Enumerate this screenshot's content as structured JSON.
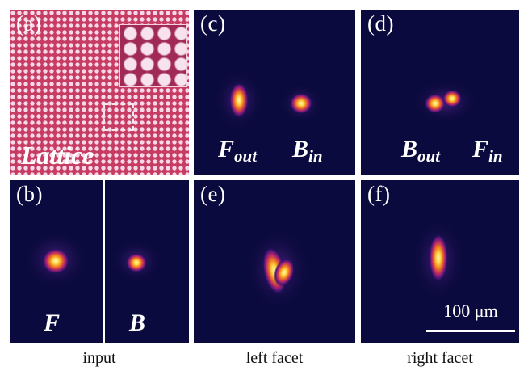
{
  "panels": {
    "a": {
      "label": "(a)",
      "text": "Lattice"
    },
    "b": {
      "label": "(b)",
      "left_text": "F",
      "right_text": "B"
    },
    "c": {
      "label": "(c)",
      "left_main": "F",
      "left_sub": "out",
      "right_main": "B",
      "right_sub": "in"
    },
    "d": {
      "label": "(d)",
      "left_main": "B",
      "left_sub": "out",
      "right_main": "F",
      "right_sub": "in"
    },
    "e": {
      "label": "(e)"
    },
    "f": {
      "label": "(f)"
    }
  },
  "scale_bar": "100 μm",
  "captions": {
    "input": "input",
    "left": "left facet",
    "right": "right facet"
  },
  "colors": {
    "background": "#0b0a3e",
    "lattice": "#c63c63",
    "hot": "#ffe58a"
  }
}
